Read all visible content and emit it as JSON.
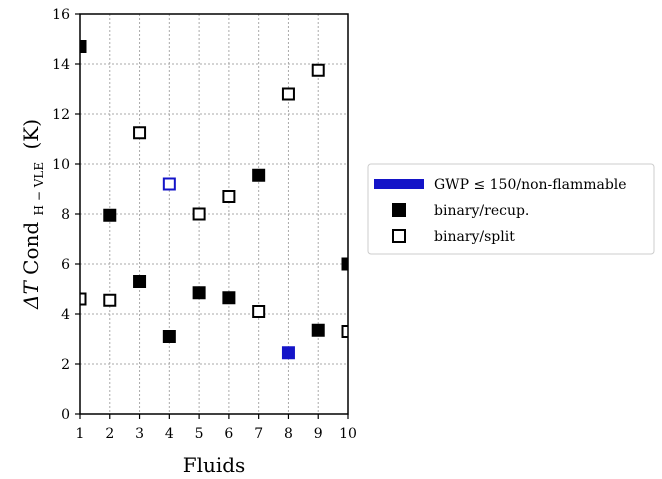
{
  "chart_data": {
    "type": "scatter",
    "xlabel": "Fluids",
    "ylabel": {
      "prefix": "ΔT",
      "main": "Cond",
      "subscript": "H − VLE",
      "unit": "(K)"
    },
    "xlim": [
      1,
      10
    ],
    "ylim": [
      0,
      16
    ],
    "x_ticks": [
      1,
      2,
      3,
      4,
      5,
      6,
      7,
      8,
      9,
      10
    ],
    "y_ticks": [
      0,
      2,
      4,
      6,
      8,
      10,
      12,
      14,
      16
    ],
    "grid": true,
    "legend_position": "right-outside",
    "series": [
      {
        "name": "GWP ≤ 150/non-flammable",
        "legend_marker": "bar",
        "color": "#1414c8"
      },
      {
        "name": "binary/recup.",
        "marker": "filled-square",
        "points": [
          {
            "x": 1,
            "y": 14.7,
            "color": "#000000"
          },
          {
            "x": 2,
            "y": 7.95,
            "color": "#000000"
          },
          {
            "x": 3,
            "y": 5.3,
            "color": "#000000"
          },
          {
            "x": 4,
            "y": 3.1,
            "color": "#000000"
          },
          {
            "x": 5,
            "y": 4.85,
            "color": "#000000"
          },
          {
            "x": 6,
            "y": 4.65,
            "color": "#000000"
          },
          {
            "x": 7,
            "y": 9.55,
            "color": "#000000"
          },
          {
            "x": 8,
            "y": 2.45,
            "color": "#1414c8"
          },
          {
            "x": 9,
            "y": 3.35,
            "color": "#000000"
          },
          {
            "x": 10,
            "y": 6.0,
            "color": "#000000"
          }
        ]
      },
      {
        "name": "binary/split",
        "marker": "open-square",
        "points": [
          {
            "x": 1,
            "y": 4.6,
            "color": "#000000"
          },
          {
            "x": 2,
            "y": 4.55,
            "color": "#000000"
          },
          {
            "x": 3,
            "y": 11.25,
            "color": "#000000"
          },
          {
            "x": 4,
            "y": 9.2,
            "color": "#1414c8"
          },
          {
            "x": 5,
            "y": 8.0,
            "color": "#000000"
          },
          {
            "x": 6,
            "y": 8.7,
            "color": "#000000"
          },
          {
            "x": 7,
            "y": 4.1,
            "color": "#000000"
          },
          {
            "x": 8,
            "y": 12.8,
            "color": "#000000"
          },
          {
            "x": 9,
            "y": 13.75,
            "color": "#000000"
          },
          {
            "x": 10,
            "y": 3.3,
            "color": "#000000"
          }
        ]
      }
    ]
  }
}
